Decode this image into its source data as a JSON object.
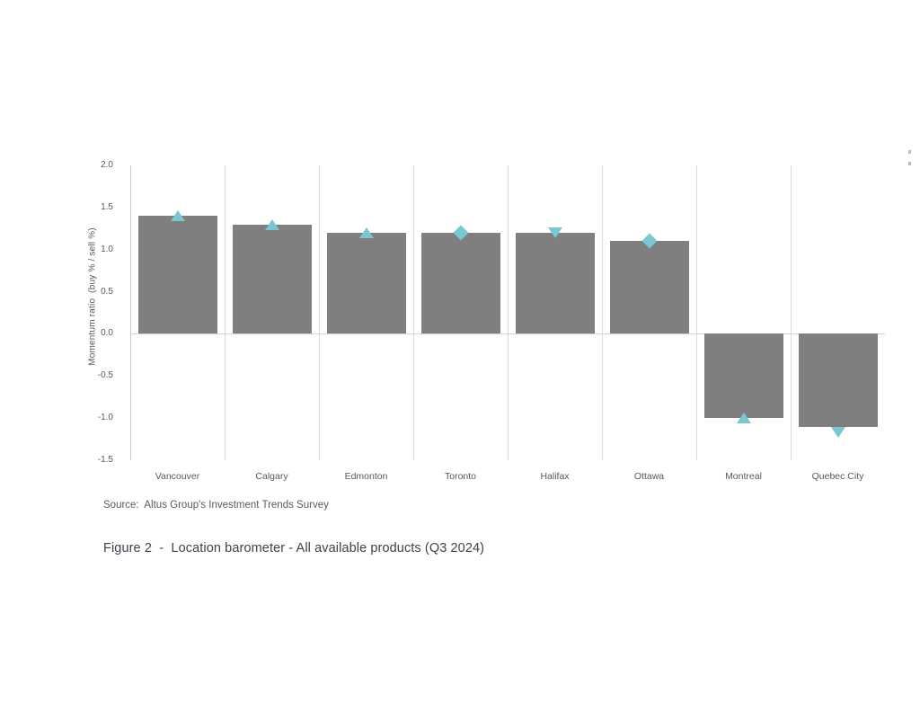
{
  "figure": {
    "caption": "Figure 2  -  Location barometer - All available products (Q3 2024)",
    "source": "Source:  Altus Group's Investment Trends Survey"
  },
  "chart_data": {
    "type": "bar",
    "title": "Location barometer - All available products (Q3 2024)",
    "categories": [
      "Vancouver",
      "Calgary",
      "Edmonton",
      "Toronto",
      "Halifax",
      "Ottawa",
      "Montreal",
      "Quebec City"
    ],
    "values": [
      1.4,
      1.3,
      1.2,
      1.2,
      1.2,
      1.1,
      -1.0,
      -1.1
    ],
    "marker_shapes": [
      "triangle-up",
      "triangle-up",
      "triangle-up",
      "diamond",
      "triangle-down",
      "diamond",
      "triangle-up",
      "triangle-down"
    ],
    "ylabel": "Momentum ratio  (buy % / sell %)",
    "xlabel": "",
    "yticks": [
      2.0,
      1.5,
      1.0,
      0.5,
      0.0,
      -0.5,
      -1.0,
      -1.5
    ],
    "ytick_labels": [
      "2.0",
      "1.5",
      "1.0",
      "0.5",
      "0.0",
      "-0.5",
      "-1.0",
      "-1.5"
    ],
    "ylim": [
      -1.5,
      2.0
    ],
    "grid": "vertical-category-separators",
    "legend": "none",
    "colors": {
      "bar": "#7f7f7f",
      "marker": "#7ac6d2",
      "gridline": "#dcdcdc",
      "axis_line": "#c9c9c9",
      "zero_line": "#d2d2d2",
      "tick_text": "#595959",
      "caption_text": "#3a444d"
    }
  }
}
